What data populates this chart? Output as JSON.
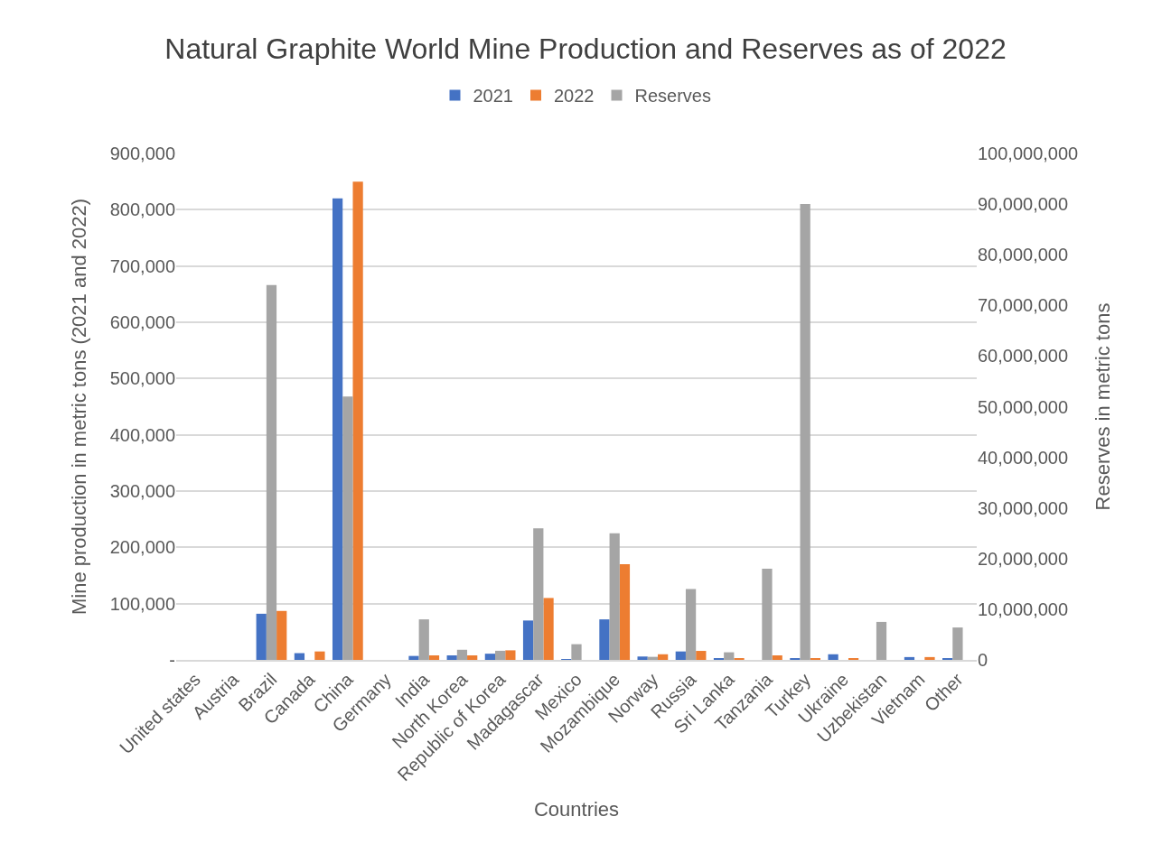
{
  "chart_data": {
    "type": "bar",
    "title": "Natural Graphite World Mine Production and Reserves as of 2022",
    "xlabel": "Countries",
    "ylabel": "Mine production in metric tons (2021 and 2022)",
    "y2label": "Reserves in metric tons",
    "categories": [
      "United states",
      "Austria",
      "Brazil",
      "Canada",
      "China",
      "Germany",
      "India",
      "North Korea",
      "Republic of Korea",
      "Madagascar",
      "Mexico",
      "Mozambique",
      "Norway",
      "Russia",
      "Sri Lanka",
      "Tanzania",
      "Turkey",
      "Ukraine",
      "Uzbekistan",
      "Vietnam",
      "Other"
    ],
    "series": [
      {
        "name": "2021",
        "color": "#4472c4",
        "values": [
          0,
          0,
          82000,
          12000,
          820000,
          0,
          7000,
          8000,
          11000,
          70000,
          1000,
          72000,
          6000,
          15000,
          3000,
          0,
          2000,
          10000,
          0,
          5000,
          3000
        ]
      },
      {
        "name": "Reserves",
        "color": "#a5a5a5",
        "axis": "y2",
        "values": [
          0,
          0,
          74000000,
          0,
          52000000,
          0,
          8000000,
          2000000,
          1800000,
          26000000,
          3100000,
          25000000,
          600000,
          14000000,
          1500000,
          18000000,
          90000000,
          0,
          7500000,
          0,
          6400000
        ]
      },
      {
        "name": "2022",
        "color": "#ed7d31",
        "values": [
          0,
          0,
          87000,
          15000,
          850000,
          0,
          8000,
          8000,
          17000,
          110000,
          0,
          170000,
          10000,
          16000,
          3000,
          8000,
          2000,
          3000,
          0,
          5000,
          0
        ]
      }
    ],
    "ylim": [
      0,
      900000
    ],
    "yticks": [
      {
        "value": 0,
        "label": "-"
      },
      {
        "value": 100000,
        "label": "100,000"
      },
      {
        "value": 200000,
        "label": "200,000"
      },
      {
        "value": 300000,
        "label": "300,000"
      },
      {
        "value": 400000,
        "label": "400,000"
      },
      {
        "value": 500000,
        "label": "500,000"
      },
      {
        "value": 600000,
        "label": "600,000"
      },
      {
        "value": 700000,
        "label": "700,000"
      },
      {
        "value": 800000,
        "label": "800,000"
      },
      {
        "value": 900000,
        "label": "900,000"
      }
    ],
    "y2lim": [
      0,
      100000000
    ],
    "y2ticks": [
      0,
      {
        "value": 10000000,
        "label": "10,000,000"
      },
      {
        "value": 20000000,
        "label": "20,000,000"
      },
      {
        "value": 30000000,
        "label": "30,000,000"
      },
      {
        "value": 40000000,
        "label": "40,000,000"
      },
      {
        "value": 50000000,
        "label": "50,000,000"
      },
      {
        "value": 60000000,
        "label": "60,000,000"
      },
      {
        "value": 70000000,
        "label": "70,000,000"
      },
      {
        "value": 80000000,
        "label": "80,000,000"
      },
      {
        "value": 90000000,
        "label": "90,000,000"
      },
      {
        "value": 100000000,
        "label": "100,000,000"
      }
    ],
    "grid": "y",
    "legend": "top"
  }
}
